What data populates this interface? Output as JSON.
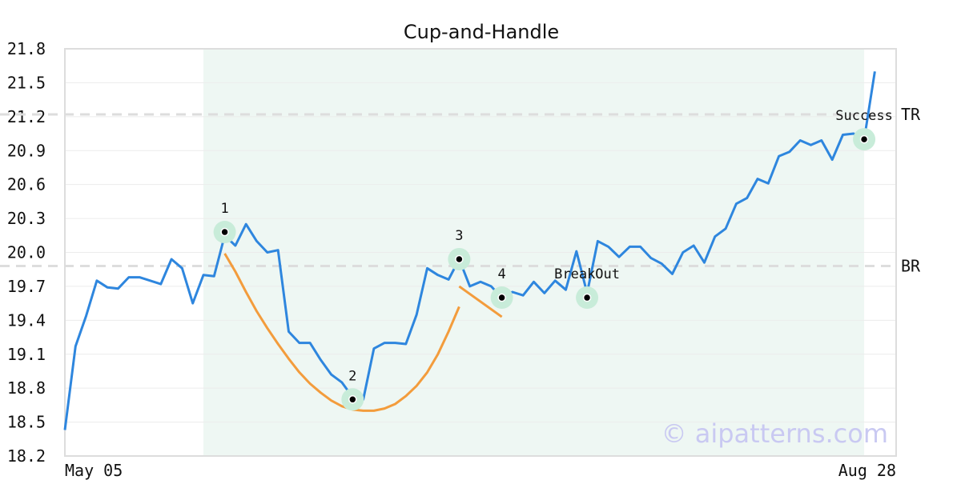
{
  "chart_data": {
    "type": "line",
    "title": "Cup-and-Handle",
    "xlabel": "",
    "ylabel": "",
    "x_tick_labels": [
      "May 05",
      "Aug 28"
    ],
    "y_ticks": [
      "18.2",
      "18.5",
      "18.8",
      "19.1",
      "19.4",
      "19.7",
      "20.0",
      "20.3",
      "20.6",
      "20.9",
      "21.2",
      "21.5",
      "21.8"
    ],
    "ylim": [
      18.2,
      21.8
    ],
    "n_points": 78,
    "grid": "horizontal",
    "series": [
      {
        "color": "#2e86de",
        "values": [
          18.43,
          19.17,
          19.44,
          19.75,
          19.69,
          19.68,
          19.78,
          19.78,
          19.75,
          19.72,
          19.94,
          19.86,
          19.55,
          19.8,
          19.79,
          20.15,
          20.06,
          20.25,
          20.1,
          20.0,
          20.02,
          19.3,
          19.2,
          19.2,
          19.05,
          18.92,
          18.85,
          18.72,
          18.7,
          19.15,
          19.2,
          19.2,
          19.19,
          19.45,
          19.86,
          19.8,
          19.76,
          19.94,
          19.7,
          19.74,
          19.7,
          19.6,
          19.65,
          19.62,
          19.74,
          19.64,
          19.75,
          19.67,
          20.01,
          19.64,
          20.1,
          20.05,
          19.96,
          20.05,
          20.05,
          19.95,
          19.9,
          19.81,
          20.0,
          20.06,
          19.91,
          20.14,
          20.21,
          20.43,
          20.48,
          20.65,
          20.61,
          20.85,
          20.89,
          20.99,
          20.95,
          20.99,
          20.82,
          21.04,
          21.05,
          21.0,
          21.6,
          null
        ]
      }
    ],
    "overlays": {
      "cup_curve": {
        "color": "#f39c3c",
        "x": [
          15,
          16,
          17,
          18,
          19,
          20,
          21,
          22,
          23,
          24,
          25,
          26,
          27,
          28,
          29,
          30,
          31,
          32,
          33,
          34,
          35,
          36,
          37
        ],
        "y": [
          19.99,
          19.83,
          19.65,
          19.48,
          19.33,
          19.19,
          19.06,
          18.94,
          18.84,
          18.76,
          18.69,
          18.64,
          18.61,
          18.6,
          18.6,
          18.62,
          18.66,
          18.73,
          18.82,
          18.94,
          19.1,
          19.3,
          19.52
        ]
      },
      "handle_line": {
        "color": "#f39c3c",
        "x": [
          37,
          41
        ],
        "y": [
          19.7,
          19.43
        ]
      },
      "shaded_range": {
        "x_start": 13,
        "x_end": 75,
        "color": "#eef7f3"
      },
      "reference_lines": [
        {
          "label": "TR",
          "y": 21.22
        },
        {
          "label": "BR",
          "y": 19.88
        }
      ],
      "points": [
        {
          "label": "1",
          "x": 15,
          "y": 20.18,
          "label_pos": "above"
        },
        {
          "label": "2",
          "x": 27,
          "y": 18.7,
          "label_pos": "above"
        },
        {
          "label": "3",
          "x": 37,
          "y": 19.94,
          "label_pos": "above"
        },
        {
          "label": "4",
          "x": 41,
          "y": 19.6,
          "label_pos": "above"
        },
        {
          "label": "BreakOut",
          "x": 49,
          "y": 19.6,
          "label_pos": "above"
        },
        {
          "label": "Success",
          "x": 75,
          "y": 21.0,
          "label_pos": "above"
        }
      ]
    },
    "colors": {
      "line": "#2e86de",
      "cup": "#f39c3c",
      "marker_halo": "#c8ecd9",
      "marker_dot": "#000000",
      "reference": "#dddddd",
      "grid": "#ececec",
      "frame": "#dddddd"
    }
  },
  "watermark": "© aipatterns.com"
}
